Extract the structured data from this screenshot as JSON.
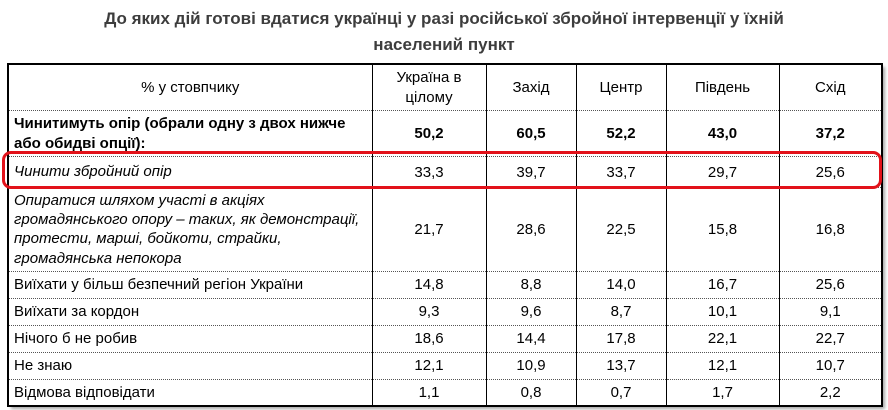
{
  "title": "До яких дій готові вдатися українці у разі російської збройної інтервенції у їхній населений пункт",
  "table": {
    "header": [
      "% у стовпчику",
      "Україна в цілому",
      "Захід",
      "Центр",
      "Південь",
      "Схід"
    ],
    "rows": [
      {
        "label": "Чинитимуть опір (обрали одну з двох нижче або обидві опції):",
        "values": [
          "50,2",
          "60,5",
          "52,2",
          "43,0",
          "37,2"
        ],
        "style": "bold",
        "highlighted": false
      },
      {
        "label": "Чинити збройний опір",
        "values": [
          "33,3",
          "39,7",
          "33,7",
          "29,7",
          "25,6"
        ],
        "style": "italic",
        "highlighted": true
      },
      {
        "label": "Опиратися шляхом участі в акціях громадянського опору – таких, як демонстрації, протести, марші, бойкоти, страйки, громадянська непокора",
        "values": [
          "21,7",
          "28,6",
          "22,5",
          "15,8",
          "16,8"
        ],
        "style": "italic",
        "highlighted": false
      },
      {
        "label": "Виїхати у більш безпечний регіон України",
        "values": [
          "14,8",
          "8,8",
          "14,0",
          "16,7",
          "25,6"
        ],
        "style": "normal",
        "highlighted": false
      },
      {
        "label": "Виїхати за кордон",
        "values": [
          "9,3",
          "9,6",
          "8,7",
          "10,1",
          "9,1"
        ],
        "style": "normal",
        "highlighted": false
      },
      {
        "label": "Нічого б не робив",
        "values": [
          "18,6",
          "14,4",
          "17,8",
          "22,1",
          "22,7"
        ],
        "style": "normal",
        "highlighted": false
      },
      {
        "label": "Не знаю",
        "values": [
          "12,1",
          "10,9",
          "13,7",
          "12,1",
          "10,7"
        ],
        "style": "normal",
        "highlighted": false
      },
      {
        "label": "Відмова відповідати",
        "values": [
          "1,1",
          "0,8",
          "0,7",
          "1,7",
          "2,2"
        ],
        "style": "normal",
        "highlighted": false
      }
    ],
    "highlight_color": "#e2121a"
  },
  "chart_data": {
    "type": "table",
    "title": "До яких дій готові вдатися українці у разі російської збройної інтервенції у їхній населений пункт",
    "unit": "% у стовпчику",
    "categories": [
      "Україна в цілому",
      "Захід",
      "Центр",
      "Південь",
      "Схід"
    ],
    "series": [
      {
        "name": "Чинитимуть опір (обрали одну з двох нижче або обидві опції):",
        "values": [
          50.2,
          60.5,
          52.2,
          43.0,
          37.2
        ]
      },
      {
        "name": "Чинити збройний опір",
        "values": [
          33.3,
          39.7,
          33.7,
          29.7,
          25.6
        ],
        "annotation": "highlighted-red-box"
      },
      {
        "name": "Опиратися шляхом участі в акціях громадянського опору – таких, як демонстрації, протести, марші, бойкоти, страйки, громадянська непокора",
        "values": [
          21.7,
          28.6,
          22.5,
          15.8,
          16.8
        ]
      },
      {
        "name": "Виїхати у більш безпечний регіон України",
        "values": [
          14.8,
          8.8,
          14.0,
          16.7,
          25.6
        ]
      },
      {
        "name": "Виїхати за кордон",
        "values": [
          9.3,
          9.6,
          8.7,
          10.1,
          9.1
        ]
      },
      {
        "name": "Нічого б не робив",
        "values": [
          18.6,
          14.4,
          17.8,
          22.1,
          22.7
        ]
      },
      {
        "name": "Не знаю",
        "values": [
          12.1,
          10.9,
          13.7,
          12.1,
          10.7
        ]
      },
      {
        "name": "Відмова відповідати",
        "values": [
          1.1,
          0.8,
          0.7,
          1.7,
          2.2
        ]
      }
    ]
  }
}
